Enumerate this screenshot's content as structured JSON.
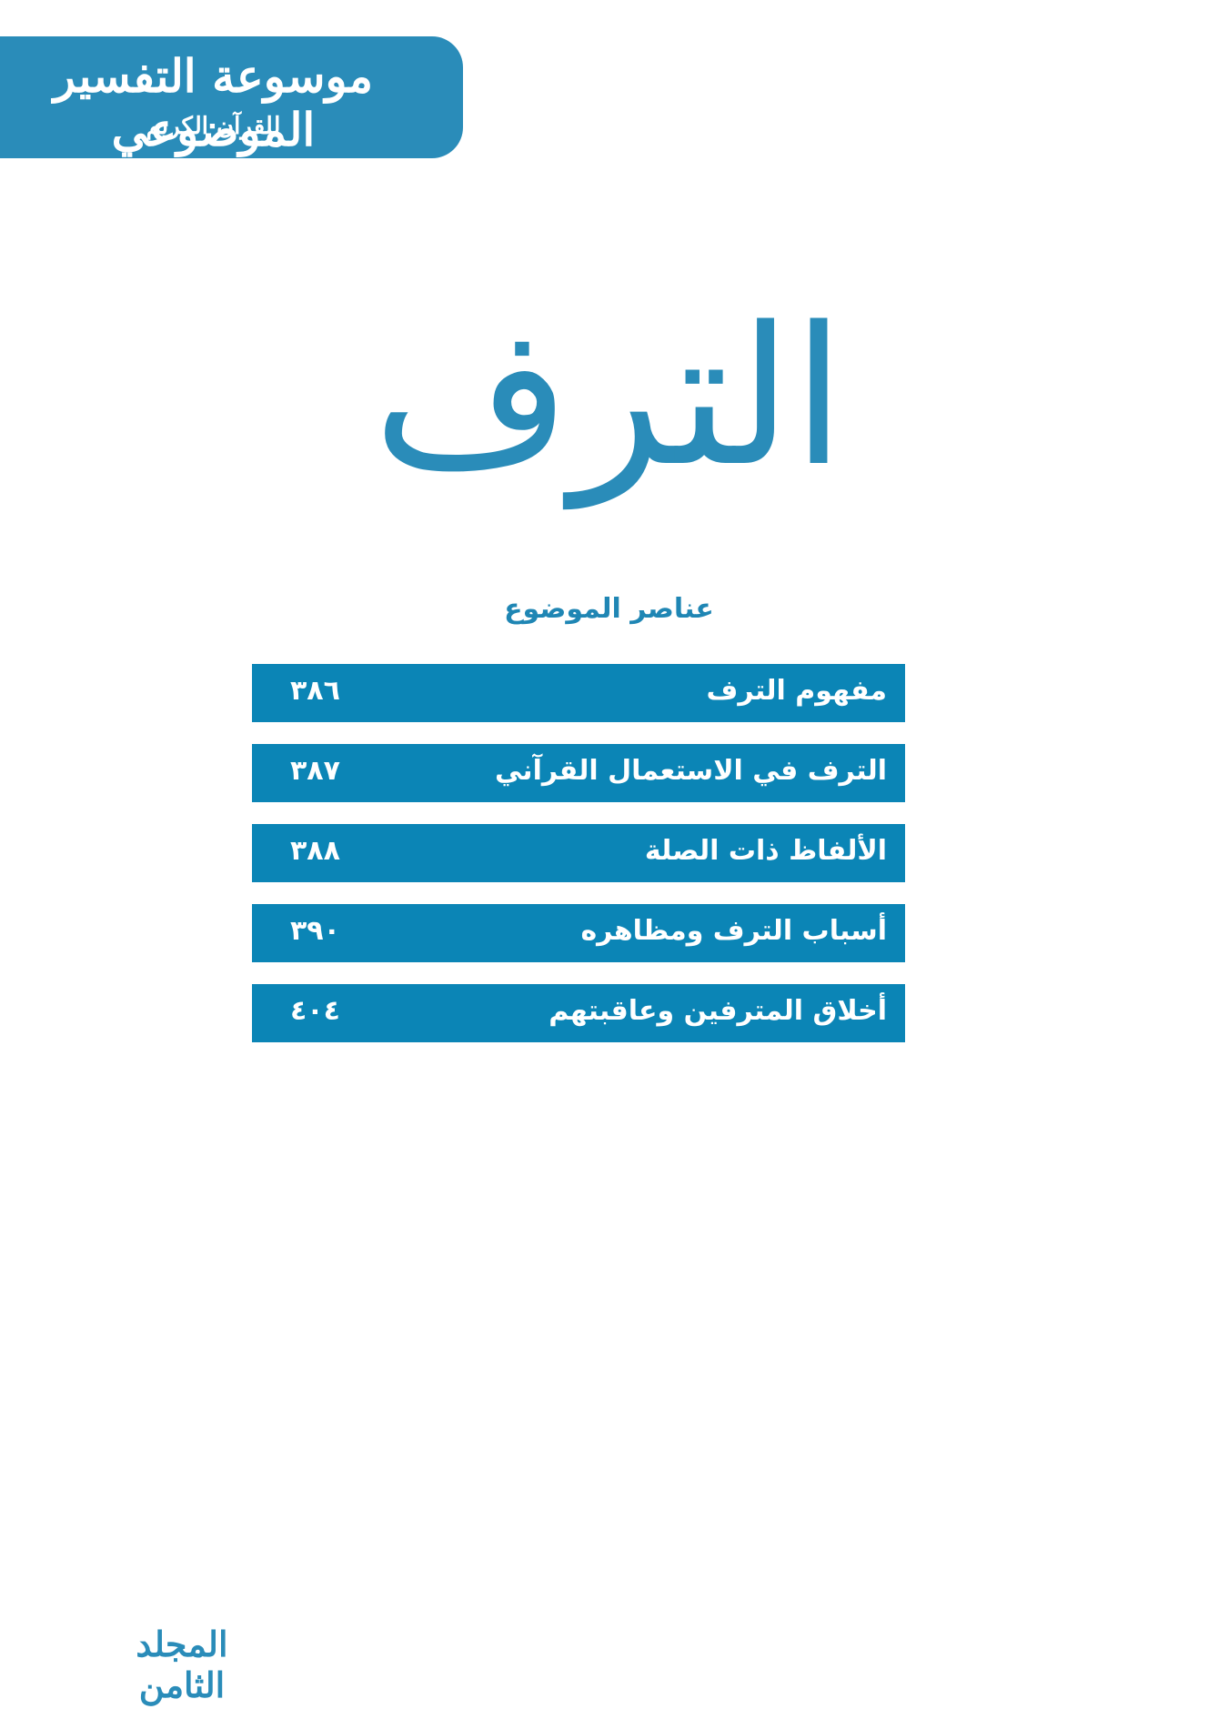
{
  "header": {
    "title": "موسوعة التفسير الموضوعي",
    "subtitle": "للقرآن الكريم"
  },
  "title": "الترف",
  "contents_heading": "عناصر الموضوع",
  "contents": {
    "rows": [
      {
        "title": "مفهوم الترف",
        "page": "٣٨٦"
      },
      {
        "title": "الترف في الاستعمال القرآني",
        "page": "٣٨٧"
      },
      {
        "title": "الألفاظ ذات الصلة",
        "page": "٣٨٨"
      },
      {
        "title": "أسباب الترف ومظاهره",
        "page": "٣٩٠"
      },
      {
        "title": "أخلاق المترفين وعاقبتهم",
        "page": "٤٠٤"
      }
    ]
  },
  "footer": {
    "volume": "المجلد الثامن"
  }
}
